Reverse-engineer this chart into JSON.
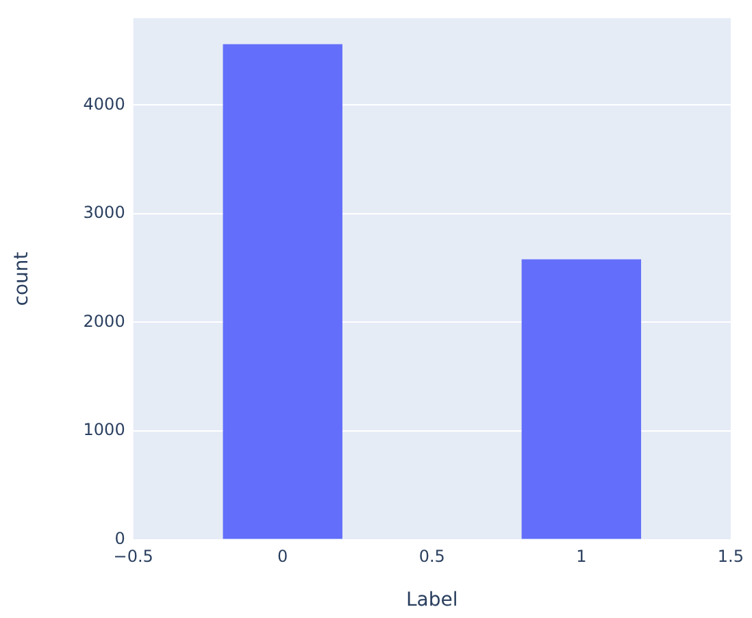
{
  "chart_data": {
    "type": "bar",
    "xlabel": "Label",
    "ylabel": "count",
    "x": [
      0,
      1
    ],
    "values": [
      4560,
      2580
    ],
    "color": "#636efa",
    "xlim": [
      -0.5,
      1.5
    ],
    "xticks": [
      {
        "value": -0.5,
        "label": "−0.5"
      },
      0,
      0.5,
      1,
      1.5
    ],
    "ylim": [
      0,
      4800
    ],
    "yticks": [
      0,
      1000,
      2000,
      3000,
      4000
    ],
    "grid": "y",
    "legend": false
  }
}
